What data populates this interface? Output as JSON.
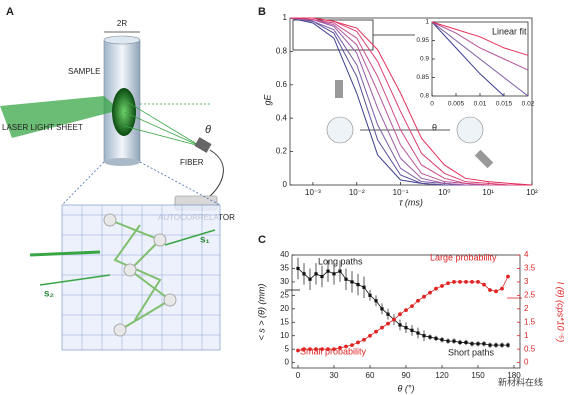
{
  "diagram": {
    "panel_label": "A",
    "width_label": "2R",
    "sample": "SAMPLE",
    "laser": "LASER LIGHT SHEET",
    "theta": "θ",
    "fiber": "FIBER",
    "autocorrelator": "AUTOCORRELATOR",
    "s1": "s₁",
    "s2": "s₂"
  },
  "watermark": "新材料在线",
  "chart_data": [
    {
      "type": "line",
      "panel_label": "B",
      "xlabel": "τ (ms)",
      "ylabel": "gE",
      "log_x": true,
      "x": [
        0.0003,
        0.001,
        0.003,
        0.01,
        0.03,
        0.1,
        0.3,
        1,
        3,
        10,
        30,
        100
      ],
      "xlim": [
        0.0003,
        100
      ],
      "xticks": [
        {
          "value": 0.001,
          "label": "10⁻³"
        },
        {
          "value": 0.01,
          "label": "10⁻²"
        },
        {
          "value": 0.1,
          "label": "10⁻¹"
        },
        {
          "value": 1,
          "label": "10⁰"
        },
        {
          "value": 10,
          "label": "10¹"
        },
        {
          "value": 100,
          "label": "10²"
        }
      ],
      "ylim": [
        0,
        1
      ],
      "yticks": [
        0,
        0.2,
        0.4,
        0.6,
        0.8,
        1
      ],
      "annotations": [
        "θ"
      ],
      "series": [
        {
          "color": "#3b3f8f",
          "values": [
            1,
            0.97,
            0.88,
            0.55,
            0.18,
            0.03,
            0.01,
            0,
            0,
            0,
            0,
            0
          ]
        },
        {
          "color": "#5a4f9a",
          "values": [
            1,
            0.98,
            0.91,
            0.65,
            0.27,
            0.06,
            0.01,
            0,
            0,
            0,
            0,
            0
          ]
        },
        {
          "color": "#7a5aa4",
          "values": [
            1,
            0.98,
            0.93,
            0.72,
            0.36,
            0.1,
            0.02,
            0.01,
            0,
            0,
            0,
            0
          ]
        },
        {
          "color": "#9a5aa8",
          "values": [
            1,
            0.99,
            0.95,
            0.79,
            0.46,
            0.16,
            0.04,
            0.01,
            0,
            0,
            0,
            0
          ]
        },
        {
          "color": "#b6549c",
          "values": [
            1,
            0.99,
            0.96,
            0.84,
            0.56,
            0.24,
            0.07,
            0.02,
            0.01,
            0,
            0,
            0
          ]
        },
        {
          "color": "#cc4a88",
          "values": [
            1,
            0.99,
            0.97,
            0.88,
            0.65,
            0.33,
            0.12,
            0.04,
            0.01,
            0,
            0,
            0
          ]
        },
        {
          "color": "#db3e70",
          "values": [
            1,
            1,
            0.98,
            0.92,
            0.74,
            0.44,
            0.19,
            0.07,
            0.02,
            0.01,
            0,
            0
          ]
        },
        {
          "color": "#e3305a",
          "values": [
            1,
            1,
            0.98,
            0.94,
            0.81,
            0.55,
            0.28,
            0.12,
            0.04,
            0.02,
            0.01,
            0
          ]
        }
      ]
    },
    {
      "type": "line",
      "annotations": [
        "Linear fit"
      ],
      "x": [
        0,
        0.005,
        0.01,
        0.015,
        0.02
      ],
      "xlim": [
        0,
        0.02
      ],
      "xticks": [
        0,
        0.005,
        0.01,
        0.015,
        0.02
      ],
      "ylim": [
        0.8,
        1
      ],
      "yticks": [
        0.8,
        0.85,
        0.9,
        0.95,
        1
      ],
      "series": [
        {
          "color": "#3b3f8f",
          "values": [
            1,
            0.93,
            0.86,
            0.8,
            null
          ]
        },
        {
          "color": "#7a5aa4",
          "values": [
            1,
            0.95,
            0.9,
            0.85,
            0.8
          ]
        },
        {
          "color": "#b6549c",
          "values": [
            1,
            0.97,
            0.93,
            0.9,
            0.87
          ]
        },
        {
          "color": "#e3305a",
          "values": [
            1,
            0.98,
            0.96,
            0.93,
            0.91
          ]
        }
      ]
    },
    {
      "type": "line",
      "panel_label": "C",
      "xlabel": "θ (°)",
      "ylabel": "< s > (θ) (mm)",
      "y2label": "I (θ) (cps*10⁻⁵)",
      "annotations": [
        "Long paths",
        "Short paths",
        "Large probability",
        "Small probability"
      ],
      "x": [
        0,
        5,
        10,
        15,
        20,
        25,
        30,
        35,
        40,
        45,
        50,
        55,
        60,
        65,
        70,
        75,
        80,
        85,
        90,
        95,
        100,
        105,
        110,
        115,
        120,
        125,
        130,
        135,
        140,
        145,
        150,
        155,
        160,
        165,
        170,
        175
      ],
      "xlim": [
        -5,
        185
      ],
      "xticks": [
        0,
        30,
        60,
        90,
        120,
        150,
        180
      ],
      "ylim": [
        -2,
        40
      ],
      "yticks": [
        0,
        5,
        10,
        15,
        20,
        25,
        30,
        35,
        40
      ],
      "y2lim": [
        -0.2,
        4
      ],
      "y2ticks": [
        0,
        0.5,
        1,
        1.5,
        2,
        2.5,
        3,
        3.5,
        4
      ],
      "series": [
        {
          "color": "#111111",
          "values": [
            35,
            33,
            31,
            33,
            32,
            34,
            33,
            34,
            31,
            30,
            29,
            28,
            25,
            23,
            20,
            18,
            16,
            14,
            13,
            12,
            11,
            10,
            9.5,
            9,
            8.5,
            8,
            8,
            7.5,
            7.5,
            7,
            7,
            7,
            6.5,
            6.5,
            6.5,
            6.5
          ],
          "errors": [
            4,
            4,
            4,
            4,
            4,
            4,
            4,
            4,
            4,
            4,
            4,
            4,
            2,
            2,
            2,
            2,
            2,
            2,
            2,
            2,
            2,
            2,
            1,
            1,
            1,
            1,
            1,
            1,
            1,
            1,
            1,
            1,
            1,
            1,
            1,
            1
          ]
        },
        {
          "color": "#e02424",
          "axis": "y2",
          "values": [
            0.45,
            0.5,
            0.5,
            0.5,
            0.5,
            0.5,
            0.5,
            0.55,
            0.6,
            0.65,
            0.75,
            0.85,
            1,
            1.15,
            1.3,
            1.45,
            1.6,
            1.8,
            1.95,
            2.1,
            2.3,
            2.45,
            2.6,
            2.75,
            2.85,
            2.95,
            3,
            3,
            3,
            3,
            3,
            2.9,
            2.7,
            2.65,
            2.75,
            3.2
          ]
        }
      ]
    }
  ]
}
